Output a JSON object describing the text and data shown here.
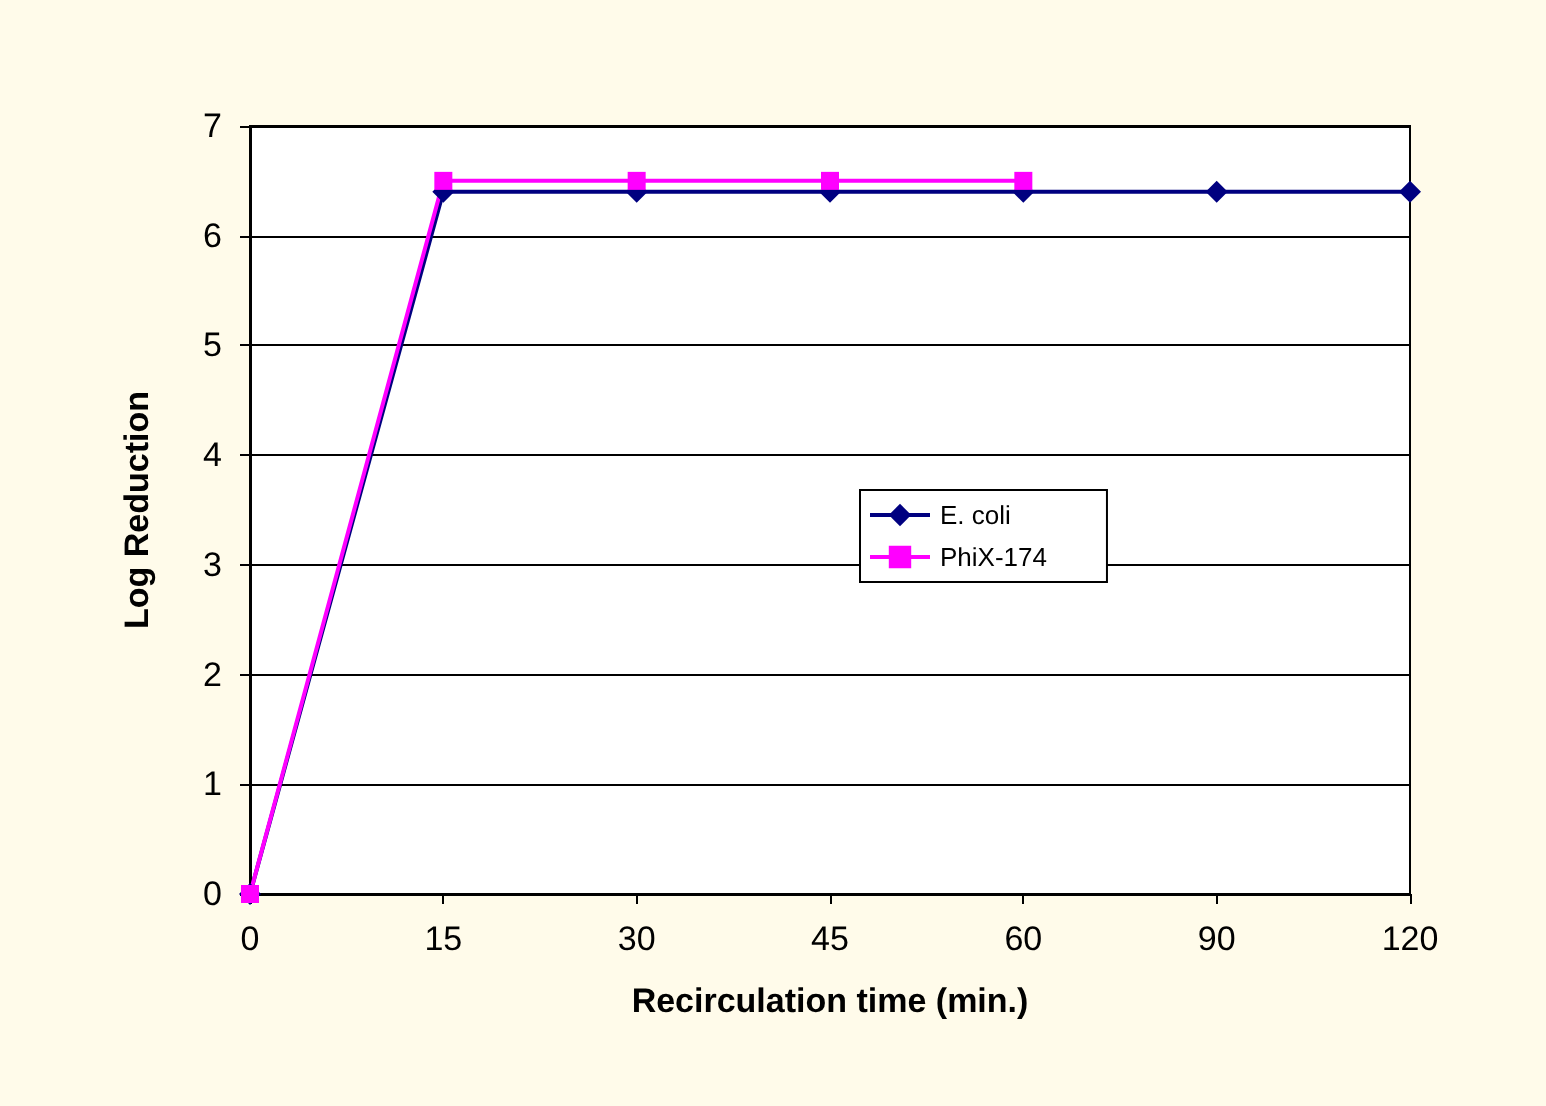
{
  "chart_data": {
    "type": "line",
    "xlabel": "Recirculation time (min.)",
    "ylabel": "Log Reduction",
    "categories": [
      "0",
      "15",
      "30",
      "45",
      "60",
      "90",
      "120"
    ],
    "series": [
      {
        "name": "E. coli",
        "color": "#000080",
        "marker": "diamond",
        "values": [
          0,
          6.4,
          6.4,
          6.4,
          6.4,
          6.4,
          6.4
        ]
      },
      {
        "name": "PhiX-174",
        "color": "#ff00ff",
        "marker": "square",
        "values": [
          0,
          6.5,
          6.5,
          6.5,
          6.5,
          null,
          null
        ]
      }
    ],
    "ylim": [
      0,
      7
    ],
    "yticks": [
      0,
      1,
      2,
      3,
      4,
      5,
      6,
      7
    ],
    "grid": "y",
    "legend": "center"
  }
}
